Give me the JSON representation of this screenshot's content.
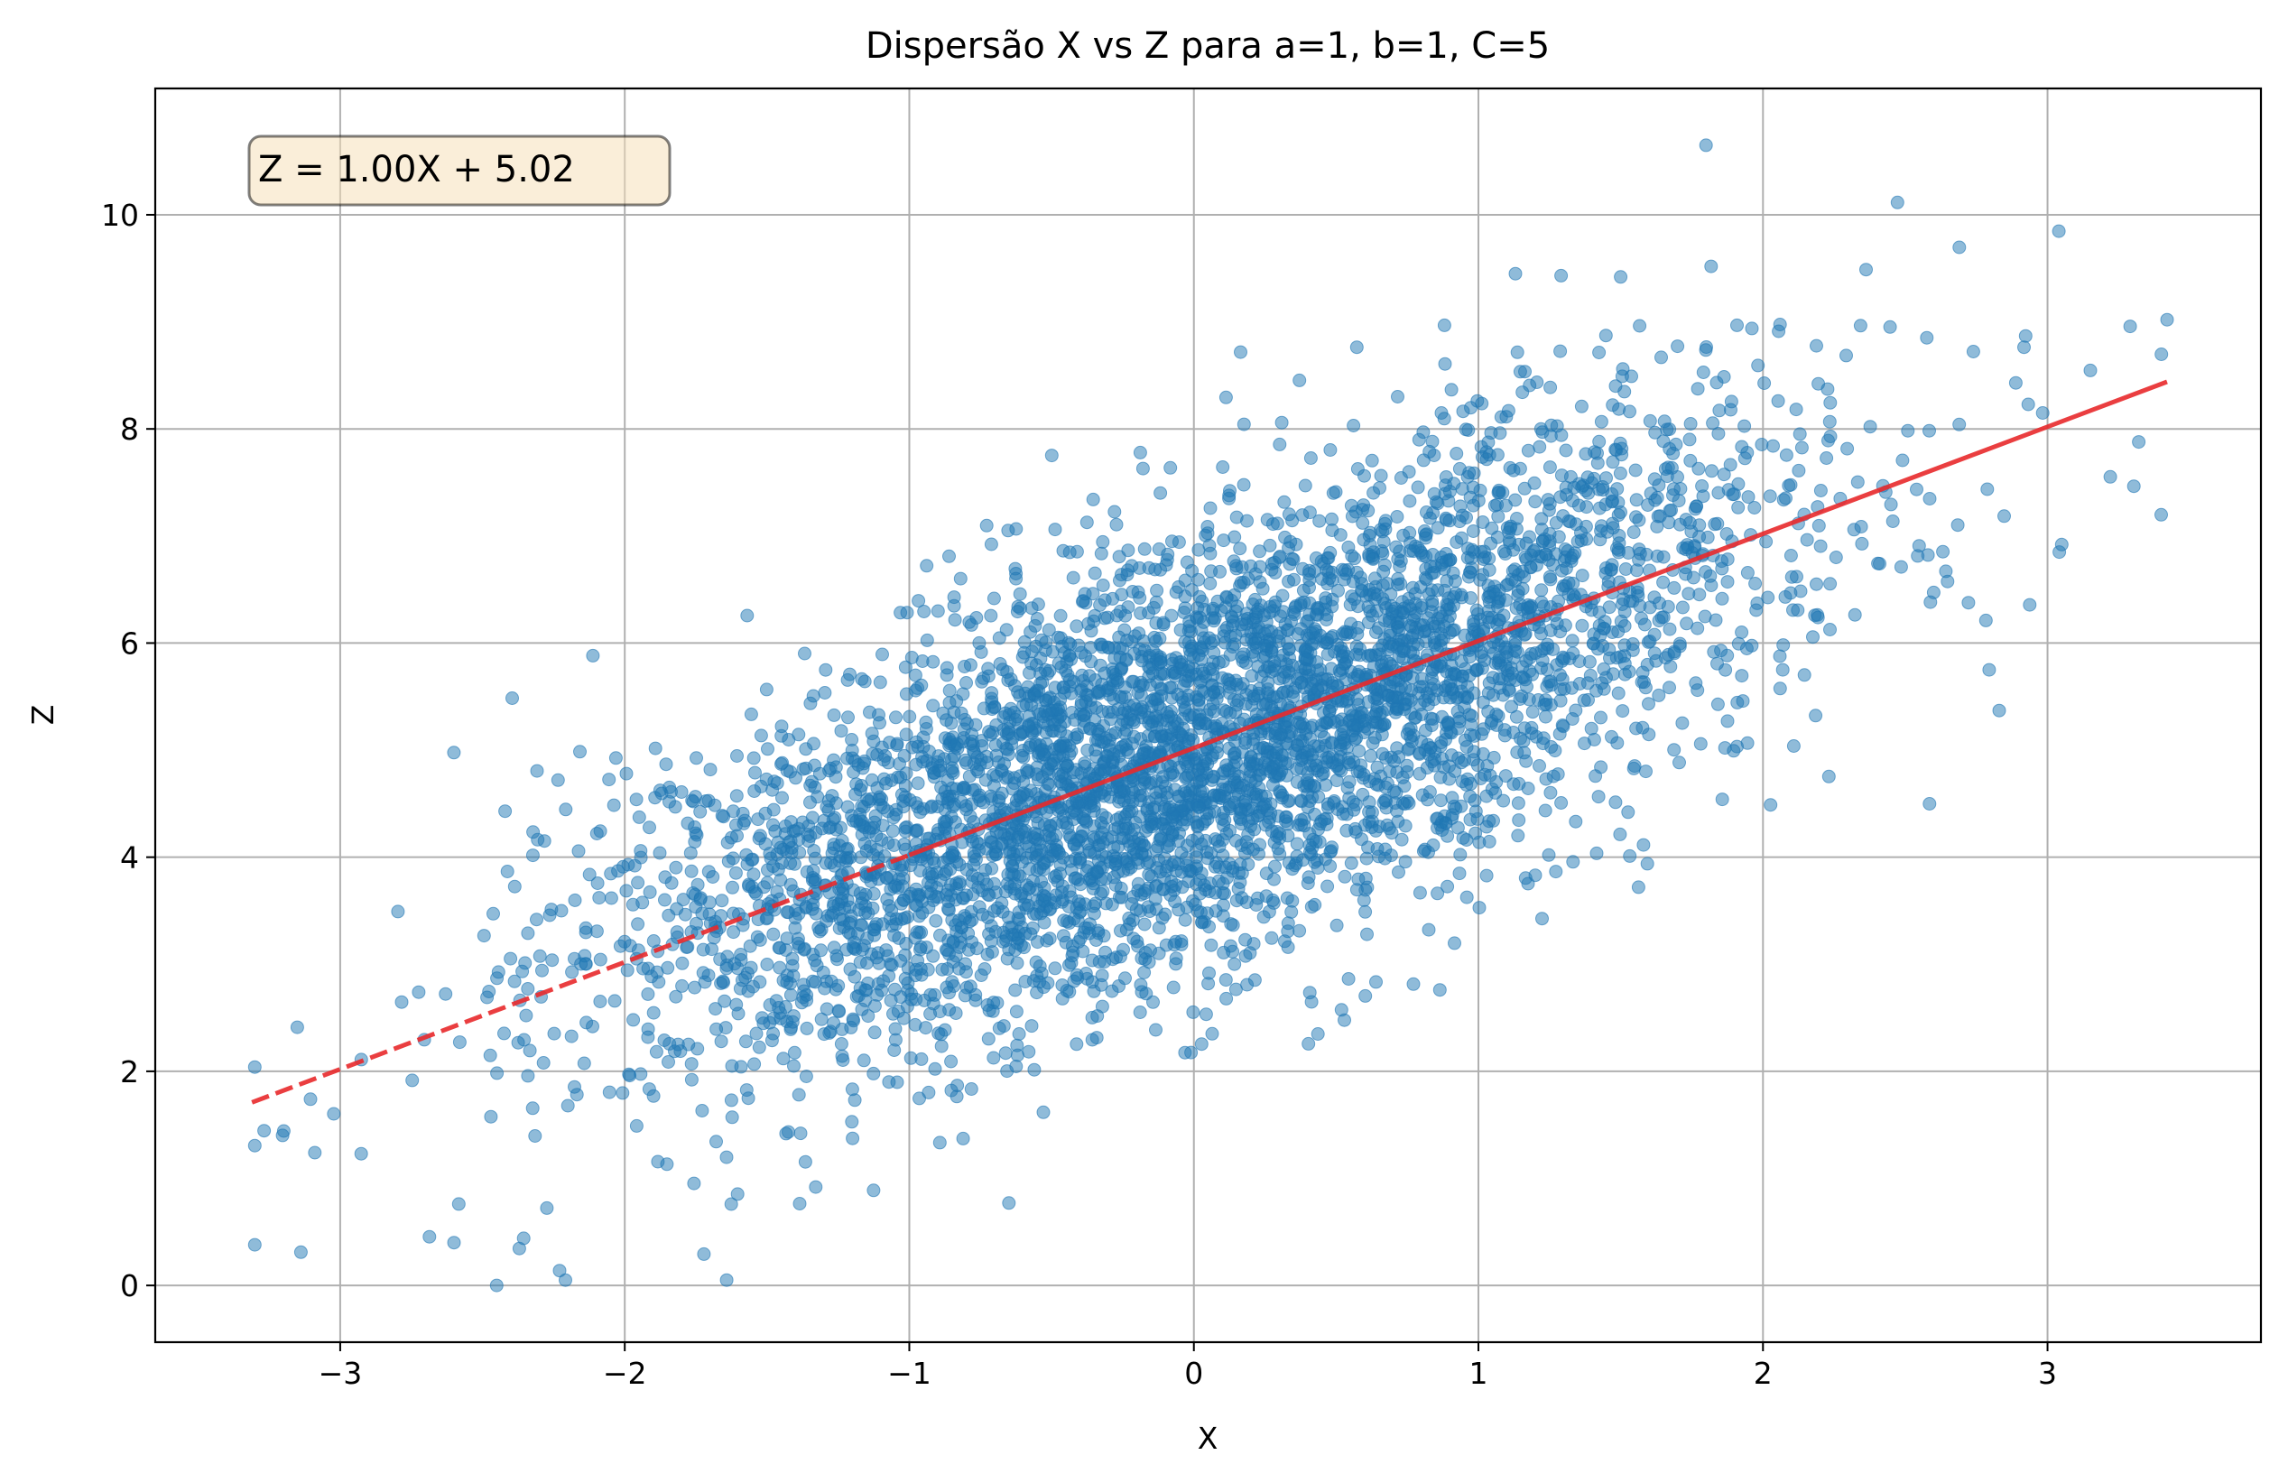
{
  "chart_data": {
    "type": "scatter",
    "title": "Dispersão X vs Z para a=1, b=1, C=5",
    "xlabel": "X",
    "ylabel": "Z",
    "xlim": [
      -3.65,
      3.75
    ],
    "ylim": [
      -0.53,
      11.18
    ],
    "x_ticks": [
      -3,
      -2,
      -1,
      0,
      1,
      2,
      3
    ],
    "x_tick_labels": [
      "−3",
      "−2",
      "−1",
      "0",
      "1",
      "2",
      "3"
    ],
    "y_ticks": [
      0,
      2,
      4,
      6,
      8,
      10
    ],
    "y_tick_labels": [
      "0",
      "2",
      "4",
      "6",
      "8",
      "10"
    ],
    "grid": true,
    "annotation": "Z = 1.00X + 5.02",
    "colors": {
      "points": "#1f77b4",
      "fit_line": "#e8292b",
      "grid": "#b0b0b0",
      "annotation_bg": "#f5deb3"
    },
    "series": [
      {
        "style": "points",
        "n_points": 5000,
        "x_mean": 0.0,
        "x_std": 1.0,
        "noise_std": 1.0,
        "highlighted_points": [
          {
            "x": 1.8,
            "y": 10.65
          },
          {
            "x": -2.45,
            "y": 0.0
          },
          {
            "x": 3.42,
            "y": 9.02
          },
          {
            "x": 1.13,
            "y": 9.45
          },
          {
            "x": 1.5,
            "y": 9.42
          },
          {
            "x": -3.3,
            "y": 2.04
          },
          {
            "x": -0.65,
            "y": 0.77
          },
          {
            "x": -2.6,
            "y": 0.4
          },
          {
            "x": 2.83,
            "y": 5.37
          },
          {
            "x": 3.05,
            "y": 6.92
          }
        ]
      },
      {
        "style": "fit-line",
        "slope": 1.0,
        "intercept": 5.02,
        "x_range": [
          -3.31,
          3.42
        ]
      }
    ]
  }
}
